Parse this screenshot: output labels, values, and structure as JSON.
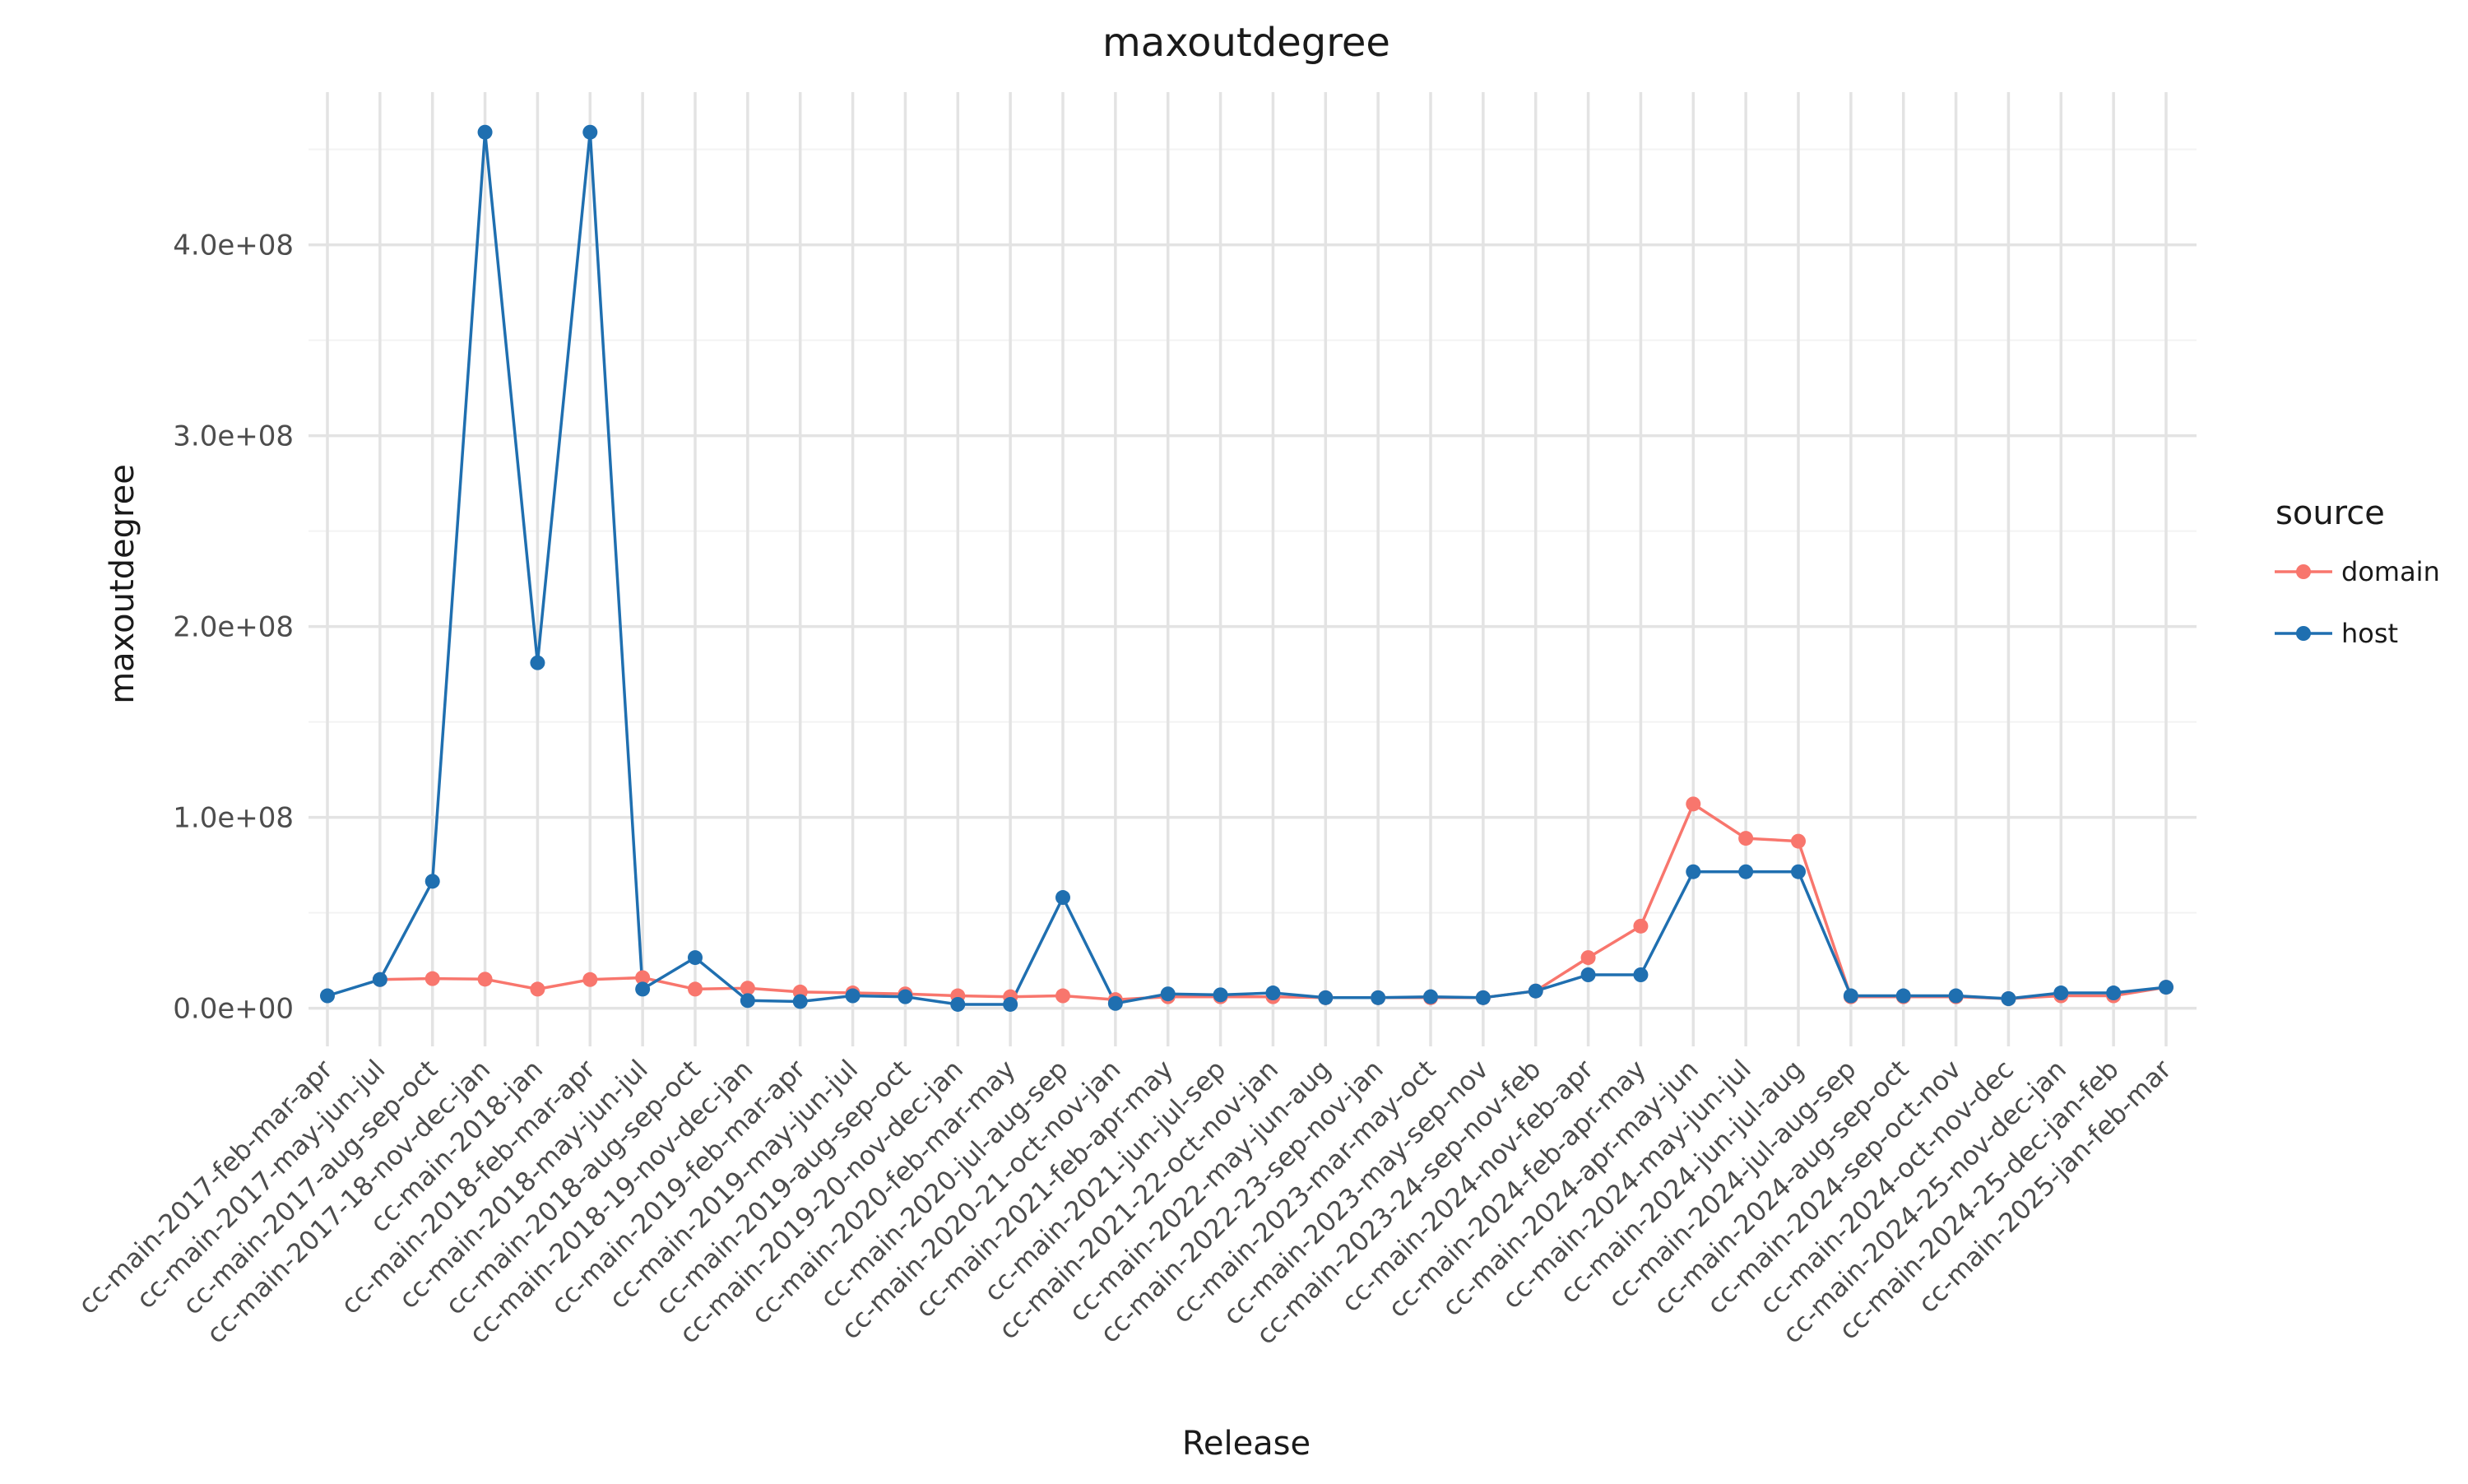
{
  "chart_data": {
    "type": "line",
    "title": "maxoutdegree",
    "xlabel": "Release",
    "ylabel": "maxoutdegree",
    "ylim": [
      -20000000,
      480000000
    ],
    "yticks": [
      0,
      100000000,
      200000000,
      300000000,
      400000000
    ],
    "ytick_labels": [
      "0.0e+00",
      "1.0e+08",
      "2.0e+08",
      "3.0e+08",
      "4.0e+08"
    ],
    "grid": true,
    "legend": {
      "title": "source",
      "position": "right"
    },
    "categories": [
      "cc-main-2017-feb-mar-apr",
      "cc-main-2017-may-jun-jul",
      "cc-main-2017-aug-sep-oct",
      "cc-main-2017-18-nov-dec-jan",
      "cc-main-2018-jan",
      "cc-main-2018-feb-mar-apr",
      "cc-main-2018-may-jun-jul",
      "cc-main-2018-aug-sep-oct",
      "cc-main-2018-19-nov-dec-jan",
      "cc-main-2019-feb-mar-apr",
      "cc-main-2019-may-jun-jul",
      "cc-main-2019-aug-sep-oct",
      "cc-main-2019-20-nov-dec-jan",
      "cc-main-2020-feb-mar-may",
      "cc-main-2020-jul-aug-sep",
      "cc-main-2020-21-oct-nov-jan",
      "cc-main-2021-feb-apr-may",
      "cc-main-2021-jun-jul-sep",
      "cc-main-2021-22-oct-nov-jan",
      "cc-main-2022-may-jun-aug",
      "cc-main-2022-23-sep-nov-jan",
      "cc-main-2023-mar-may-oct",
      "cc-main-2023-may-sep-nov",
      "cc-main-2023-24-sep-nov-feb",
      "cc-main-2024-nov-feb-apr",
      "cc-main-2024-feb-apr-may",
      "cc-main-2024-apr-may-jun",
      "cc-main-2024-may-jun-jul",
      "cc-main-2024-jun-jul-aug",
      "cc-main-2024-jul-aug-sep",
      "cc-main-2024-aug-sep-oct",
      "cc-main-2024-sep-oct-nov",
      "cc-main-2024-oct-nov-dec",
      "cc-main-2024-25-nov-dec-jan",
      "cc-main-2024-25-dec-jan-feb",
      "cc-main-2025-jan-feb-mar"
    ],
    "series": [
      {
        "name": "domain",
        "color": "#F8766D",
        "values": [
          null,
          15000000,
          15500000,
          15200000,
          10000000,
          15000000,
          16000000,
          10000000,
          10500000,
          8500000,
          8000000,
          7500000,
          6500000,
          6000000,
          6500000,
          4500000,
          6000000,
          6000000,
          6000000,
          5500000,
          5500000,
          5500000,
          5500000,
          9000000,
          26500000,
          43000000,
          107000000,
          89000000,
          87500000,
          6000000,
          6000000,
          6000000,
          5000000,
          6500000,
          6500000,
          11000000
        ]
      },
      {
        "name": "host",
        "color": "#1F6FB0",
        "values": [
          6500000,
          15000000,
          66500000,
          459000000,
          181000000,
          459000000,
          10000000,
          26500000,
          4000000,
          3500000,
          6500000,
          6000000,
          2000000,
          2000000,
          58000000,
          2500000,
          7500000,
          7000000,
          8000000,
          5500000,
          5500000,
          6000000,
          5500000,
          9000000,
          17500000,
          17500000,
          71500000,
          71500000,
          71500000,
          6500000,
          6500000,
          6500000,
          5000000,
          8000000,
          8000000,
          11000000
        ]
      }
    ]
  }
}
